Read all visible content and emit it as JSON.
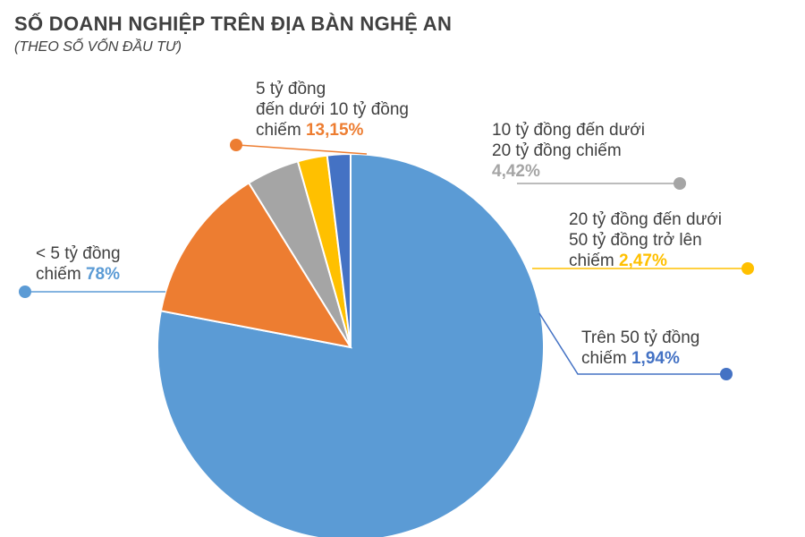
{
  "title": "SỐ DOANH NGHIỆP TRÊN ĐỊA BÀN NGHỆ AN",
  "subtitle": "(THEO SỐ VỐN ĐẦU TƯ)",
  "chart_data": {
    "type": "pie",
    "title": "SỐ DOANH NGHIỆP TRÊN ĐỊA BÀN NGHỆ AN",
    "subtitle": "(THEO SỐ VỐN ĐẦU TƯ)",
    "legend": "none",
    "slices": [
      {
        "key": "under5",
        "value": 78,
        "value_label": "78%",
        "color": "#5B9BD5",
        "text_lines": [
          "< 5 tỷ đồng"
        ],
        "lead": "chiếm"
      },
      {
        "key": "5to10",
        "value": 13.15,
        "value_label": "13,15%",
        "color": "#ED7D31",
        "text_lines": [
          "5 tỷ đồng",
          "đến dưới 10 tỷ đồng"
        ],
        "lead": "chiếm"
      },
      {
        "key": "10to20",
        "value": 4.42,
        "value_label": "4,42%",
        "color": "#A5A5A5",
        "text_lines": [
          "10 tỷ đồng đến dưới",
          "20 tỷ đồng chiếm"
        ],
        "lead": ""
      },
      {
        "key": "20to50",
        "value": 2.47,
        "value_label": "2,47%",
        "color": "#FFC000",
        "text_lines": [
          "20 tỷ đồng đến dưới",
          "50 tỷ đồng trở lên"
        ],
        "lead": "chiếm"
      },
      {
        "key": "over50",
        "value": 1.94,
        "value_label": "1,94%",
        "color": "#4472C4",
        "text_lines": [
          "Trên 50 tỷ đồng"
        ],
        "lead": "chiếm"
      }
    ]
  }
}
